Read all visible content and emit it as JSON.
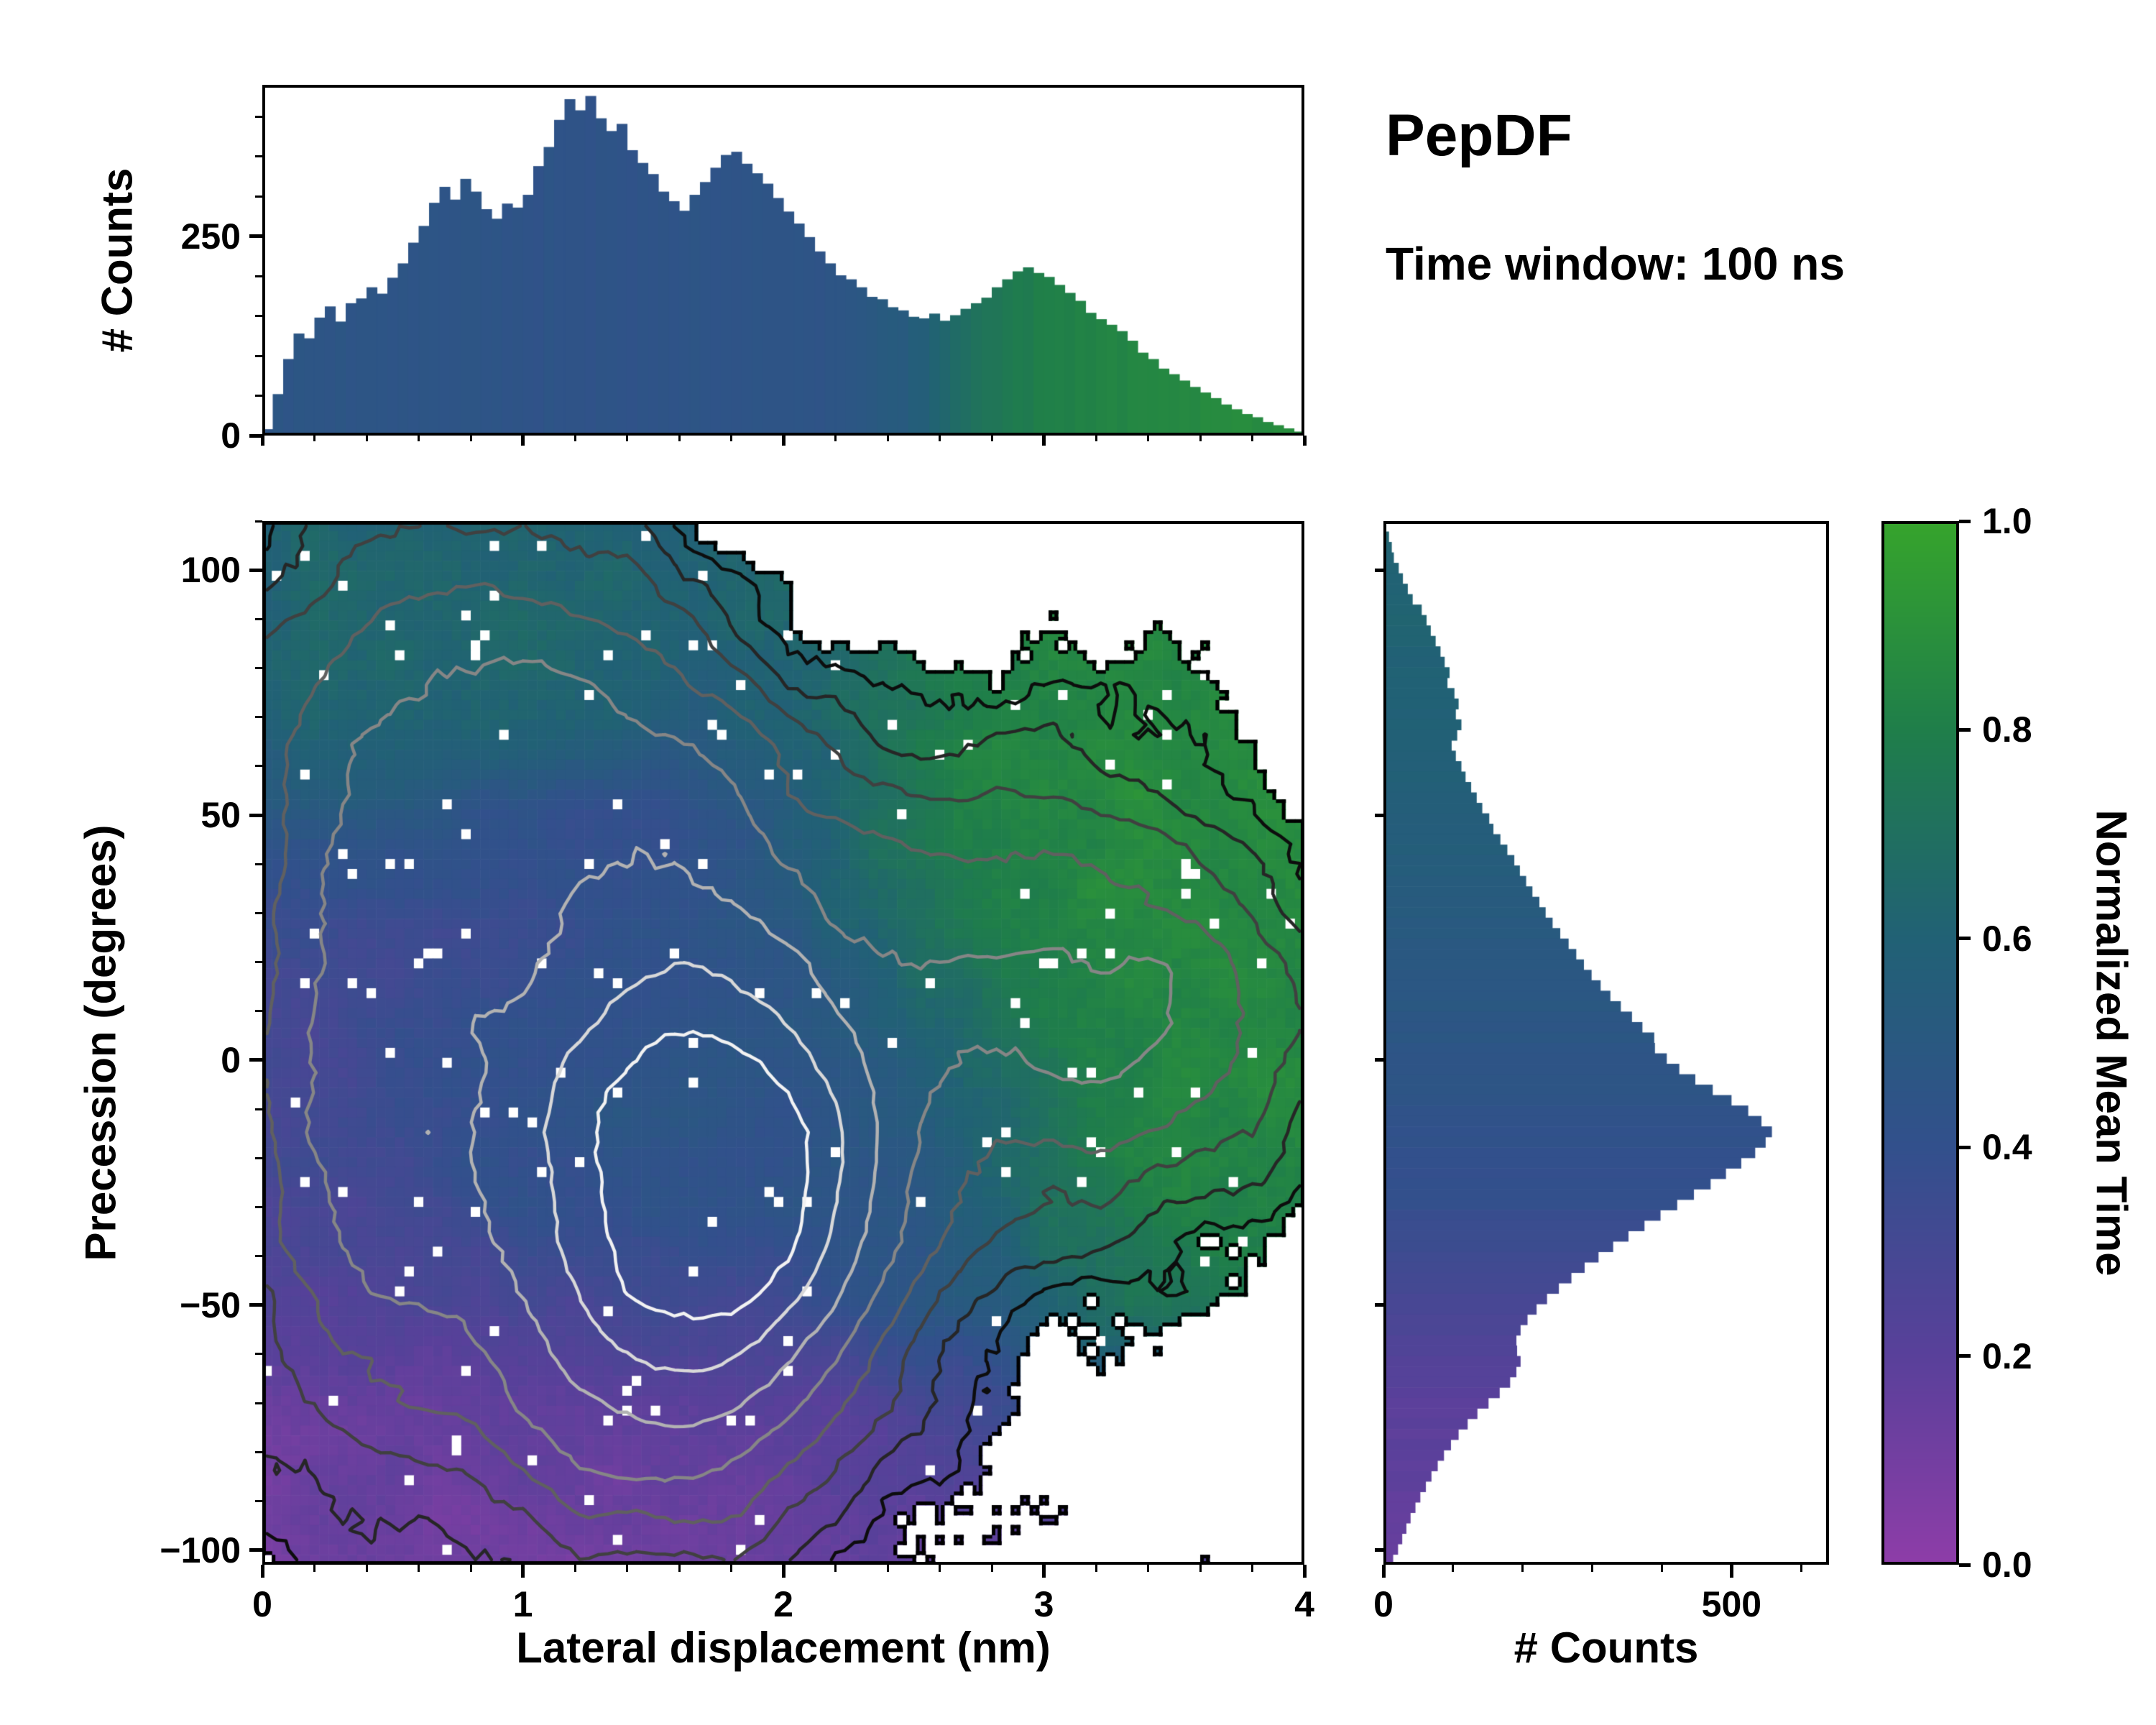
{
  "title": "PepDF",
  "subtitle": "Time window: 100 ns",
  "colorbar": {
    "label": "Normalized Mean Time",
    "tick_labels": [
      "1.0",
      "0.8",
      "0.6",
      "0.4",
      "0.2",
      "0.0"
    ],
    "tick_values": [
      1.0,
      0.8,
      0.6,
      0.4,
      0.2,
      0.0
    ],
    "min": 0.0,
    "max": 1.0
  },
  "colormap": [
    {
      "t": 0.0,
      "c": "#8e3da8"
    },
    {
      "t": 0.2,
      "c": "#59409a"
    },
    {
      "t": 0.4,
      "c": "#32508c"
    },
    {
      "t": 0.6,
      "c": "#216175"
    },
    {
      "t": 0.8,
      "c": "#1f7e4a"
    },
    {
      "t": 1.0,
      "c": "#36a42c"
    }
  ],
  "axes": {
    "top_hist": {
      "ylabel": "# Counts",
      "ytick_labels": [
        "250",
        "0"
      ],
      "ytick_values": [
        250,
        0
      ],
      "ylim": [
        0,
        440
      ],
      "xlim": [
        0,
        4
      ],
      "x_minor_step": 0.2,
      "y_minor_step": 50
    },
    "main": {
      "xlabel": "Lateral displacement (nm)",
      "ylabel": "Precession (degrees)",
      "xtick_labels": [
        "0",
        "1",
        "2",
        "3",
        "4"
      ],
      "xtick_values": [
        0,
        1,
        2,
        3,
        4
      ],
      "ytick_labels": [
        "100",
        "50",
        "0",
        "−50",
        "−100"
      ],
      "ytick_values": [
        100,
        50,
        0,
        -50,
        -100
      ],
      "xlim": [
        0,
        4
      ],
      "ylim": [
        -103,
        110
      ],
      "x_minor_step": 0.2,
      "y_minor_step": 10
    },
    "right_hist": {
      "xlabel": "# Counts",
      "xtick_labels": [
        "0",
        "500"
      ],
      "xtick_values": [
        0,
        500
      ],
      "xlim": [
        0,
        640
      ],
      "ylim": [
        -103,
        110
      ],
      "x_minor_step": 100,
      "y_minor_step": 10
    }
  },
  "chart_data": [
    {
      "name": "lateral-displacement-count-histogram",
      "type": "bar",
      "xlabel": "Lateral displacement (nm)",
      "ylabel": "# Counts",
      "xlim": [
        0,
        4
      ],
      "ylim": [
        0,
        440
      ],
      "x_start": 0,
      "bin_width": 0.04,
      "values": [
        8,
        52,
        96,
        128,
        122,
        148,
        162,
        143,
        166,
        172,
        186,
        178,
        198,
        216,
        242,
        263,
        292,
        312,
        296,
        322,
        306,
        284,
        272,
        291,
        286,
        302,
        338,
        362,
        396,
        422,
        408,
        426,
        398,
        382,
        391,
        358,
        342,
        328,
        306,
        294,
        282,
        302,
        318,
        336,
        352,
        356,
        341,
        329,
        316,
        298,
        281,
        266,
        249,
        231,
        216,
        201,
        196,
        186,
        174,
        171,
        161,
        157,
        149,
        147,
        153,
        144,
        151,
        159,
        166,
        173,
        186,
        196,
        206,
        211,
        204,
        199,
        189,
        179,
        169,
        154,
        146,
        139,
        131,
        119,
        104,
        96,
        84,
        77,
        69,
        61,
        54,
        47,
        39,
        33,
        27,
        23,
        17,
        13,
        9,
        5
      ],
      "color_by": "normalized mean time",
      "color_value_stops": [
        [
          0,
          0.46
        ],
        [
          1.2,
          0.44
        ],
        [
          2.2,
          0.45
        ],
        [
          2.45,
          0.52
        ],
        [
          2.6,
          0.62
        ],
        [
          2.8,
          0.74
        ],
        [
          3.0,
          0.8
        ],
        [
          3.4,
          0.85
        ],
        [
          4.0,
          0.88
        ]
      ]
    },
    {
      "name": "precession-vs-lateral-displacement-heatmap",
      "type": "heatmap",
      "xlabel": "Lateral displacement (nm)",
      "ylabel": "Precession (degrees)",
      "color_label": "Normalized Mean Time",
      "xlim": [
        0,
        4
      ],
      "ylim": [
        -103,
        110
      ],
      "grid": [
        110,
        105
      ],
      "mask_threshold": 0.05,
      "mean_time_grid": {
        "x": [
          0,
          0.33,
          0.67,
          1.0,
          1.33,
          1.67,
          2.0,
          2.33,
          2.67,
          3.0,
          3.33,
          3.67,
          4.0
        ],
        "y": [
          110,
          90,
          70,
          50,
          30,
          10,
          -10,
          -30,
          -50,
          -70,
          -90,
          -103
        ],
        "values": [
          [
            0.62,
            0.62,
            0.62,
            0.63,
            0.62,
            0.62,
            0.63,
            0.68,
            0.76,
            0.82,
            0.84,
            0.84,
            0.84
          ],
          [
            0.62,
            0.63,
            0.62,
            0.62,
            0.62,
            0.62,
            0.64,
            0.7,
            0.8,
            0.84,
            0.86,
            0.86,
            0.86
          ],
          [
            0.6,
            0.62,
            0.62,
            0.62,
            0.6,
            0.56,
            0.6,
            0.7,
            0.8,
            0.84,
            0.87,
            0.86,
            0.86
          ],
          [
            0.46,
            0.5,
            0.46,
            0.42,
            0.4,
            0.42,
            0.54,
            0.68,
            0.79,
            0.84,
            0.87,
            0.87,
            0.86
          ],
          [
            0.33,
            0.35,
            0.35,
            0.38,
            0.4,
            0.42,
            0.5,
            0.64,
            0.76,
            0.83,
            0.86,
            0.86,
            0.86
          ],
          [
            0.3,
            0.32,
            0.36,
            0.4,
            0.42,
            0.44,
            0.47,
            0.54,
            0.67,
            0.79,
            0.84,
            0.86,
            0.86
          ],
          [
            0.3,
            0.33,
            0.38,
            0.42,
            0.45,
            0.46,
            0.45,
            0.5,
            0.59,
            0.72,
            0.82,
            0.84,
            0.84
          ],
          [
            0.28,
            0.3,
            0.35,
            0.4,
            0.42,
            0.42,
            0.42,
            0.45,
            0.55,
            0.68,
            0.79,
            0.82,
            0.82
          ],
          [
            0.22,
            0.25,
            0.26,
            0.28,
            0.3,
            0.32,
            0.35,
            0.4,
            0.49,
            0.62,
            0.73,
            0.76,
            0.76
          ],
          [
            0.15,
            0.15,
            0.16,
            0.17,
            0.18,
            0.19,
            0.21,
            0.26,
            0.31,
            0.4,
            0.46,
            0.46,
            0.46
          ],
          [
            0.12,
            0.13,
            0.13,
            0.14,
            0.14,
            0.15,
            0.16,
            0.18,
            0.2,
            0.24,
            0.26,
            0.26,
            0.26
          ],
          [
            0.1,
            0.11,
            0.11,
            0.12,
            0.12,
            0.13,
            0.14,
            0.16,
            0.18,
            0.2,
            0.22,
            0.22,
            0.22
          ]
        ]
      },
      "density_blobs": [
        [
          1.4,
          -15,
          0.55,
          38,
          1.0
        ],
        [
          1.9,
          -25,
          0.4,
          30,
          0.8
        ],
        [
          0.9,
          75,
          0.55,
          28,
          0.45
        ],
        [
          0.35,
          0,
          0.35,
          55,
          0.55
        ],
        [
          2.95,
          15,
          0.55,
          33,
          0.48
        ],
        [
          1.5,
          -70,
          0.5,
          26,
          0.4
        ],
        [
          3.5,
          5,
          0.4,
          20,
          0.3
        ],
        [
          1.6,
          50,
          0.5,
          25,
          0.35
        ],
        [
          2.2,
          100,
          0.38,
          30,
          -0.09
        ]
      ],
      "contour_levels": [
        0.09,
        0.16,
        0.26,
        0.4,
        0.58,
        0.8,
        1.05,
        1.28
      ],
      "contour_colors": [
        "#0d0d0d",
        "#262626",
        "#404040",
        "#606060",
        "#868686",
        "#b2b2b2",
        "#d8d8d8",
        "#f2f2f2"
      ]
    },
    {
      "name": "precession-count-histogram",
      "type": "bar",
      "orientation": "horizontal",
      "xlabel": "# Counts",
      "ylabel": "Precession (degrees)",
      "xlim": [
        0,
        640
      ],
      "ylim": [
        -103,
        110
      ],
      "y_start": 110,
      "bin_height": -2.13,
      "values": [
        4,
        8,
        12,
        15,
        22,
        28,
        35,
        42,
        55,
        62,
        68,
        75,
        82,
        88,
        95,
        92,
        102,
        108,
        104,
        112,
        106,
        98,
        104,
        112,
        118,
        126,
        134,
        142,
        152,
        158,
        168,
        178,
        188,
        196,
        205,
        214,
        224,
        233,
        243,
        254,
        266,
        277,
        288,
        299,
        312,
        326,
        341,
        357,
        372,
        389,
        390,
        407,
        425,
        448,
        473,
        500,
        524,
        543,
        558,
        549,
        534,
        514,
        492,
        470,
        446,
        422,
        398,
        375,
        352,
        330,
        309,
        289,
        270,
        252,
        235,
        220,
        207,
        197,
        191,
        192,
        197,
        191,
        182,
        167,
        151,
        135,
        121,
        108,
        97,
        87,
        78,
        69,
        61,
        53,
        46,
        39,
        33,
        27,
        21,
        14
      ],
      "color_by": "normalized mean time",
      "color_value_stops": [
        [
          110,
          0.63
        ],
        [
          55,
          0.58
        ],
        [
          20,
          0.5
        ],
        [
          -5,
          0.45
        ],
        [
          -30,
          0.38
        ],
        [
          -50,
          0.28
        ],
        [
          -70,
          0.2
        ],
        [
          -103,
          0.15
        ]
      ]
    }
  ]
}
